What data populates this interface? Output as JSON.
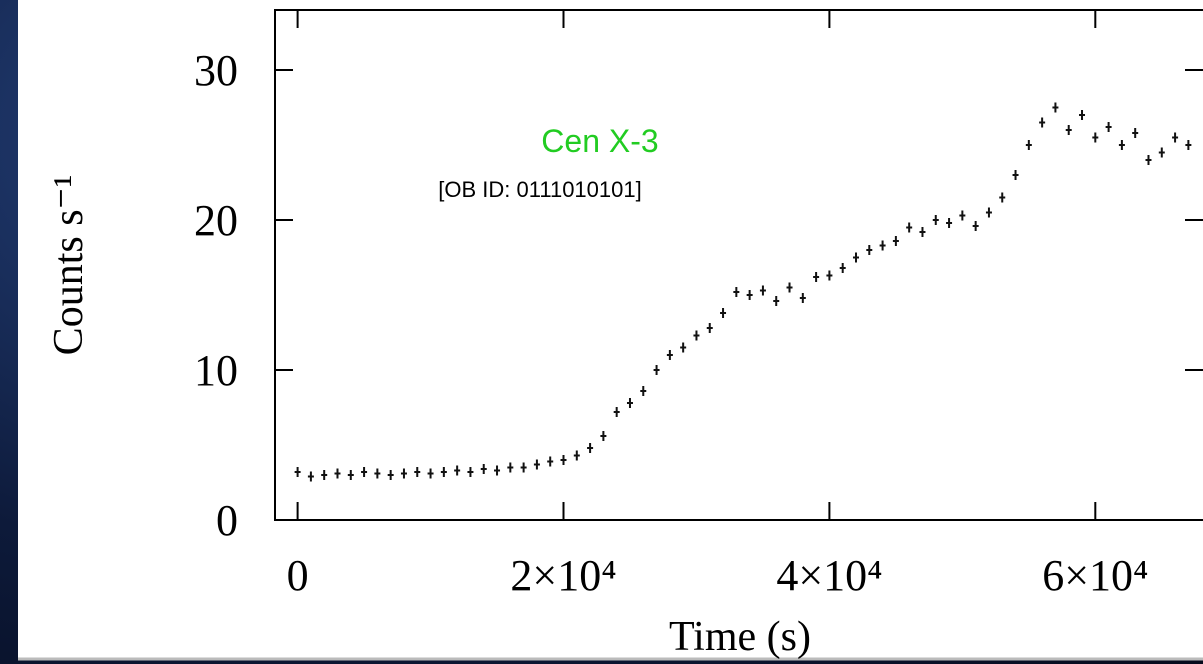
{
  "chart_data": {
    "type": "scatter",
    "annotations": [
      "Cen X-3",
      "[OB ID: 0111010101]"
    ],
    "xlabel": "Time (s)",
    "ylabel": "Counts s⁻¹",
    "x": [
      0,
      1000,
      2000,
      3000,
      4000,
      5000,
      6000,
      7000,
      8000,
      9000,
      10000,
      11000,
      12000,
      13000,
      14000,
      15000,
      16000,
      17000,
      18000,
      19000,
      20000,
      21000,
      22000,
      23000,
      24000,
      25000,
      26000,
      27000,
      28000,
      29000,
      30000,
      31000,
      32000,
      33000,
      34000,
      35000,
      36000,
      37000,
      38000,
      39000,
      40000,
      41000,
      42000,
      43000,
      44000,
      45000,
      46000,
      47000,
      48000,
      49000,
      50000,
      51000,
      52000,
      53000,
      54000,
      55000,
      56000,
      57000,
      58000,
      59000,
      60000,
      61000,
      62000,
      63000,
      64000,
      65000,
      66000,
      67000
    ],
    "values": [
      3.2,
      2.9,
      3.0,
      3.1,
      3.0,
      3.2,
      3.1,
      3.0,
      3.1,
      3.2,
      3.1,
      3.2,
      3.3,
      3.2,
      3.4,
      3.3,
      3.5,
      3.5,
      3.7,
      3.9,
      4.0,
      4.3,
      4.8,
      5.6,
      7.2,
      7.8,
      8.6,
      10.0,
      11.0,
      11.5,
      12.3,
      12.8,
      13.8,
      15.2,
      15.0,
      15.3,
      14.6,
      15.5,
      14.8,
      16.2,
      16.3,
      16.8,
      17.5,
      18.0,
      18.3,
      18.6,
      19.5,
      19.2,
      20.0,
      19.8,
      20.3,
      19.6,
      20.5,
      21.5,
      23.0,
      25.0,
      26.5,
      27.5,
      26.0,
      27.0,
      25.5,
      26.2,
      25.0,
      25.8,
      24.0,
      24.5,
      25.5,
      25.0
    ],
    "color": "#111111",
    "xlim": [
      -1700,
      68100
    ],
    "ylim": [
      0,
      34
    ],
    "xticks": [
      0,
      {
        "value": 20000,
        "label": "2×10⁴"
      },
      {
        "value": 40000,
        "label": "4×10⁴"
      },
      {
        "value": 60000,
        "label": "6×10⁴"
      }
    ],
    "yticks": [
      0,
      10,
      20,
      30
    ]
  }
}
